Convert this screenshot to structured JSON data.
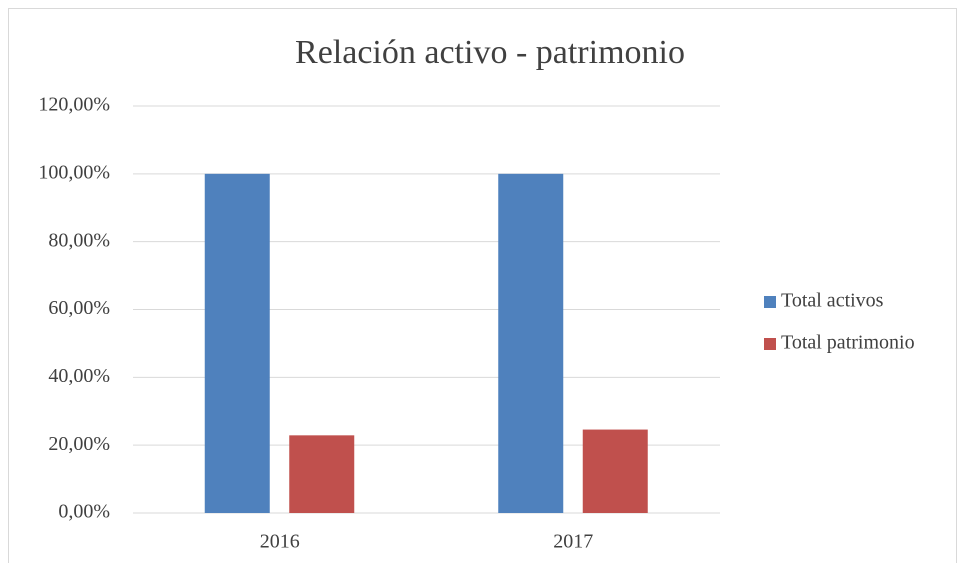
{
  "chart_data": {
    "type": "bar",
    "title": "Relación activo - patrimonio",
    "categories": [
      "2016",
      "2017"
    ],
    "series": [
      {
        "name": "Total activos",
        "color": "#4f81bd",
        "values": [
          100,
          100
        ]
      },
      {
        "name": "Total patrimonio",
        "color": "#c0504d",
        "values": [
          22.9,
          24.6
        ]
      }
    ],
    "ylim": [
      0,
      120
    ],
    "yticks": [
      {
        "value": 0,
        "label": "0,00%"
      },
      {
        "value": 20,
        "label": "20,00%"
      },
      {
        "value": 40,
        "label": "40,00%"
      },
      {
        "value": 60,
        "label": "60,00%"
      },
      {
        "value": 80,
        "label": "80,00%"
      },
      {
        "value": 100,
        "label": "100,00%"
      },
      {
        "value": 120,
        "label": "120,00%"
      }
    ],
    "grid": true,
    "legend": "right"
  }
}
